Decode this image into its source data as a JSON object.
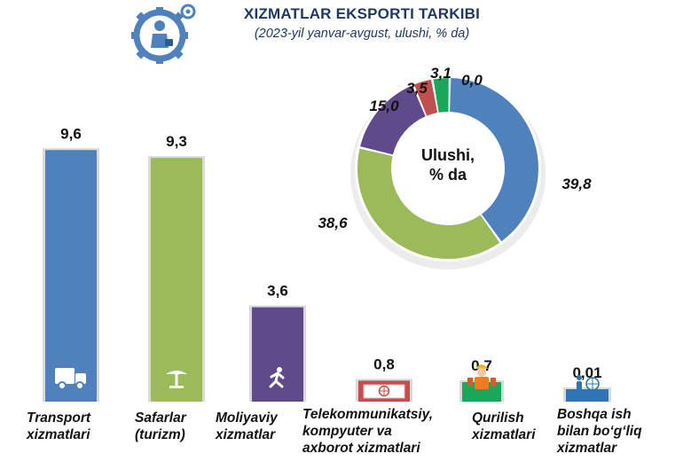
{
  "title": "XIZMATLAR EKSPORTI TARKIBI",
  "subtitle": "(2023-yil yanvar-avgust, ulushi, % da)",
  "colors": {
    "transport": "#4f81bd",
    "turizm": "#9bbb59",
    "moliya": "#5f4b8b",
    "telekom": "#c0504d",
    "qurilish": "#1aa75a",
    "boshqa": "#2e75b6"
  },
  "icons": [
    "gear-person-icon",
    "truck-icon",
    "beach-umbrella-icon",
    "running-person-icon",
    "globe-screen-icon",
    "construction-worker-icon",
    "person-globe-icon"
  ],
  "chart_data": [
    {
      "type": "bar",
      "categories": [
        "Transport xizmatlari",
        "Safarlar (turizm)",
        "Moliyaviy xizmatlar",
        "Telekommunikatsiy, kompyuter va axborot xizmatlari",
        "Qurilish xizmatlari",
        "Boshqa ish bilan bo‘g‘liq xizmatlar"
      ],
      "category_lines": [
        [
          "Transport",
          "xizmatlari"
        ],
        [
          "Safarlar",
          "(turizm)"
        ],
        [
          "Moliyaviy",
          "xizmatlar"
        ],
        [
          "Telekommunikatsiy,",
          "kompyuter va",
          "axborot xizmatlari"
        ],
        [
          "Qurilish",
          "xizmatlari"
        ],
        [
          "Boshqa ish",
          "bilan bo‘g‘liq",
          "xizmatlar"
        ]
      ],
      "values": [
        9.6,
        9.3,
        3.6,
        0.8,
        0.7,
        0.01
      ],
      "value_labels": [
        "9,6",
        "9,3",
        "3,6",
        "0,8",
        "0,7",
        "0,01"
      ],
      "ylim": [
        0,
        10
      ]
    },
    {
      "type": "pie",
      "donut": true,
      "center_label": [
        "Ulushi,",
        "% da"
      ],
      "values": [
        39.8,
        38.6,
        15.0,
        3.5,
        3.1,
        0.0
      ],
      "value_labels": [
        "39,8",
        "38,6",
        "15,0",
        "3,5",
        "3,1",
        "0,0"
      ]
    }
  ]
}
